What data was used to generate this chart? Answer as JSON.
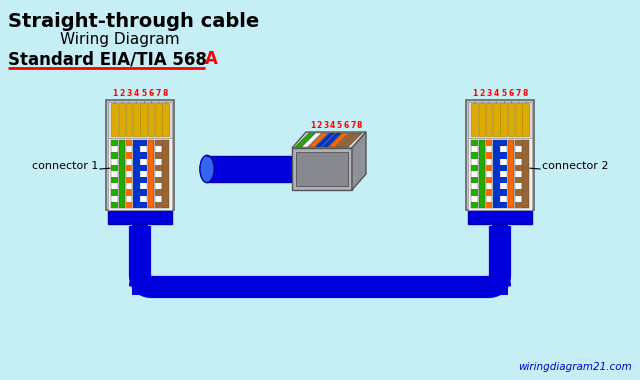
{
  "bg_color": "#c5eef5",
  "title_line1": "Straight-through cable",
  "title_line2": "Wiring Diagram",
  "title_line3_part1": "Standard EIA/TIA 568",
  "title_line3_part2": "A",
  "watermark": "wiringdiagram21.com",
  "connector1_label": "connector 1",
  "connector2_label": "connector 2",
  "pin_numbers": "12345678",
  "wire_colors_568A": [
    [
      "#22aa00",
      "#ffffff"
    ],
    [
      "#22aa00",
      "#22aa00"
    ],
    [
      "#ff6600",
      "#ffffff"
    ],
    [
      "#0033cc",
      "#0033cc"
    ],
    [
      "#0033cc",
      "#ffffff"
    ],
    [
      "#ff6600",
      "#ff6600"
    ],
    [
      "#996633",
      "#ffffff"
    ],
    [
      "#996633",
      "#996633"
    ]
  ],
  "cable_color": "#0000dd",
  "cable_color_light": "#3366ee",
  "connector_body": "#c0c0c0",
  "connector_inner": "#e8e8e8",
  "pin_gold": "#ddaa00",
  "plug_body": "#b0b0b8",
  "plug_top": "#d0d0d8",
  "plug_right": "#909098",
  "strip_colors": [
    "#22aa00",
    "#ffffff",
    "#ff6600",
    "#0033cc",
    "#0033cc",
    "#ff6600",
    "#996633",
    "#996633"
  ],
  "strip_colors2": [
    "#22aa00",
    "#22aa00",
    "#ffffff",
    "#ffffff",
    "#0033cc",
    "#ffffff",
    "#ffffff",
    "#996633"
  ]
}
